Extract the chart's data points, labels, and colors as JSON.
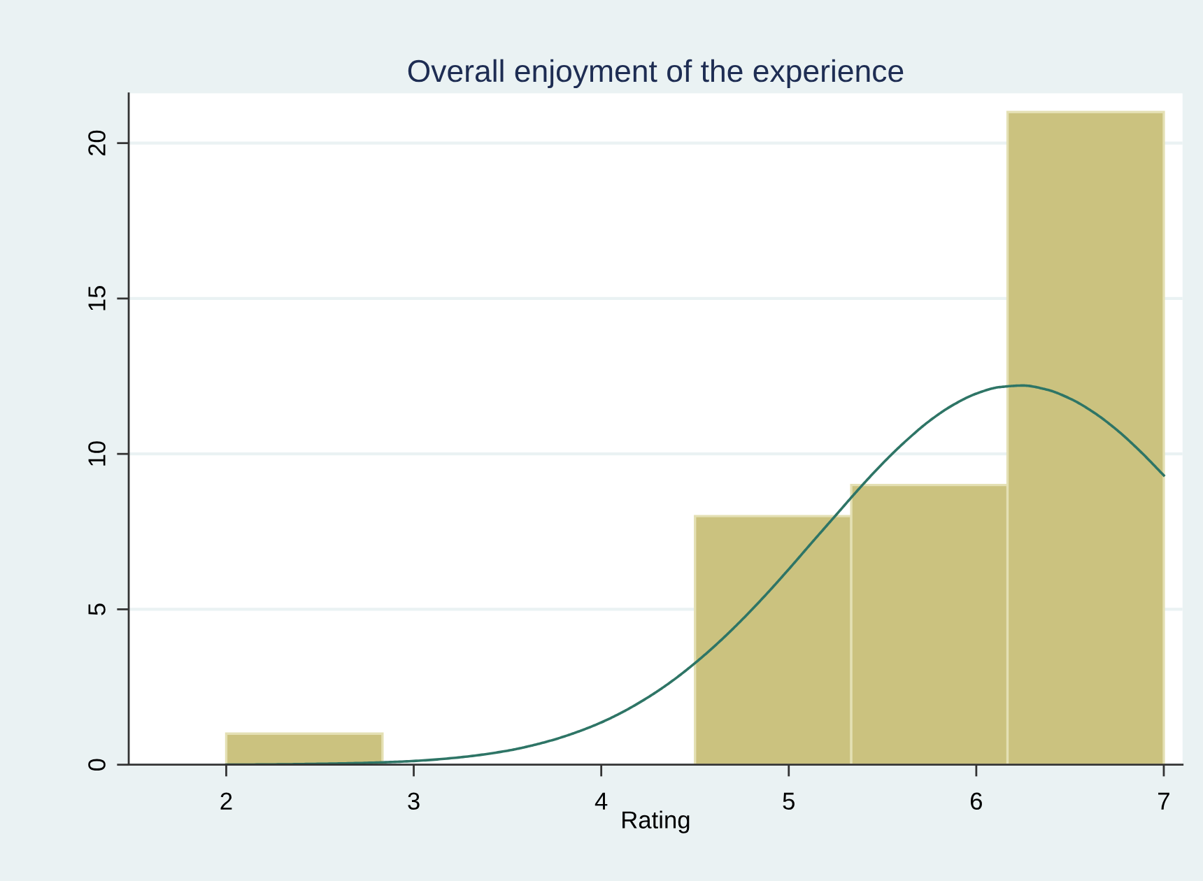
{
  "chart_data": {
    "type": "histogram",
    "title": "Overall enjoyment of the experience",
    "xlabel": "Rating",
    "bins": [
      2,
      2.8333,
      3.6667,
      4.5,
      5.3333,
      6.1667,
      7
    ],
    "series": [
      {
        "type": "histogram",
        "color": "#cbc27f",
        "values": [
          1,
          0,
          0,
          8,
          9,
          21
        ]
      },
      {
        "type": "line",
        "color": "#2e7566",
        "x": [
          2,
          2.25,
          2.5,
          2.75,
          3,
          3.25,
          3.5,
          3.625,
          3.75,
          3.875,
          4,
          4.125,
          4.25,
          4.375,
          4.5,
          4.625,
          4.75,
          4.875,
          5,
          5.125,
          5.25,
          5.375,
          5.5,
          5.625,
          5.75,
          5.875,
          6,
          6.125,
          6.25,
          6.375,
          6.5,
          6.625,
          6.75,
          6.875,
          7
        ],
        "values": [
          0.0,
          0.01,
          0.03,
          0.06,
          0.12,
          0.24,
          0.45,
          0.61,
          0.81,
          1.06,
          1.36,
          1.73,
          2.17,
          2.68,
          3.27,
          3.93,
          4.66,
          5.45,
          6.29,
          7.16,
          8.02,
          8.88,
          9.69,
          10.42,
          11.06,
          11.57,
          11.94,
          12.15,
          12.2,
          12.07,
          11.78,
          11.34,
          10.77,
          10.08,
          9.31
        ]
      }
    ],
    "xlim": [
      1.48,
      7.1
    ],
    "ylim": [
      0,
      21.6
    ],
    "xticks": [
      2,
      3,
      4,
      5,
      6,
      7
    ],
    "yticks": [
      0,
      5,
      10,
      15,
      20
    ],
    "grid": "y",
    "line_style": "solid",
    "marker": "none"
  }
}
